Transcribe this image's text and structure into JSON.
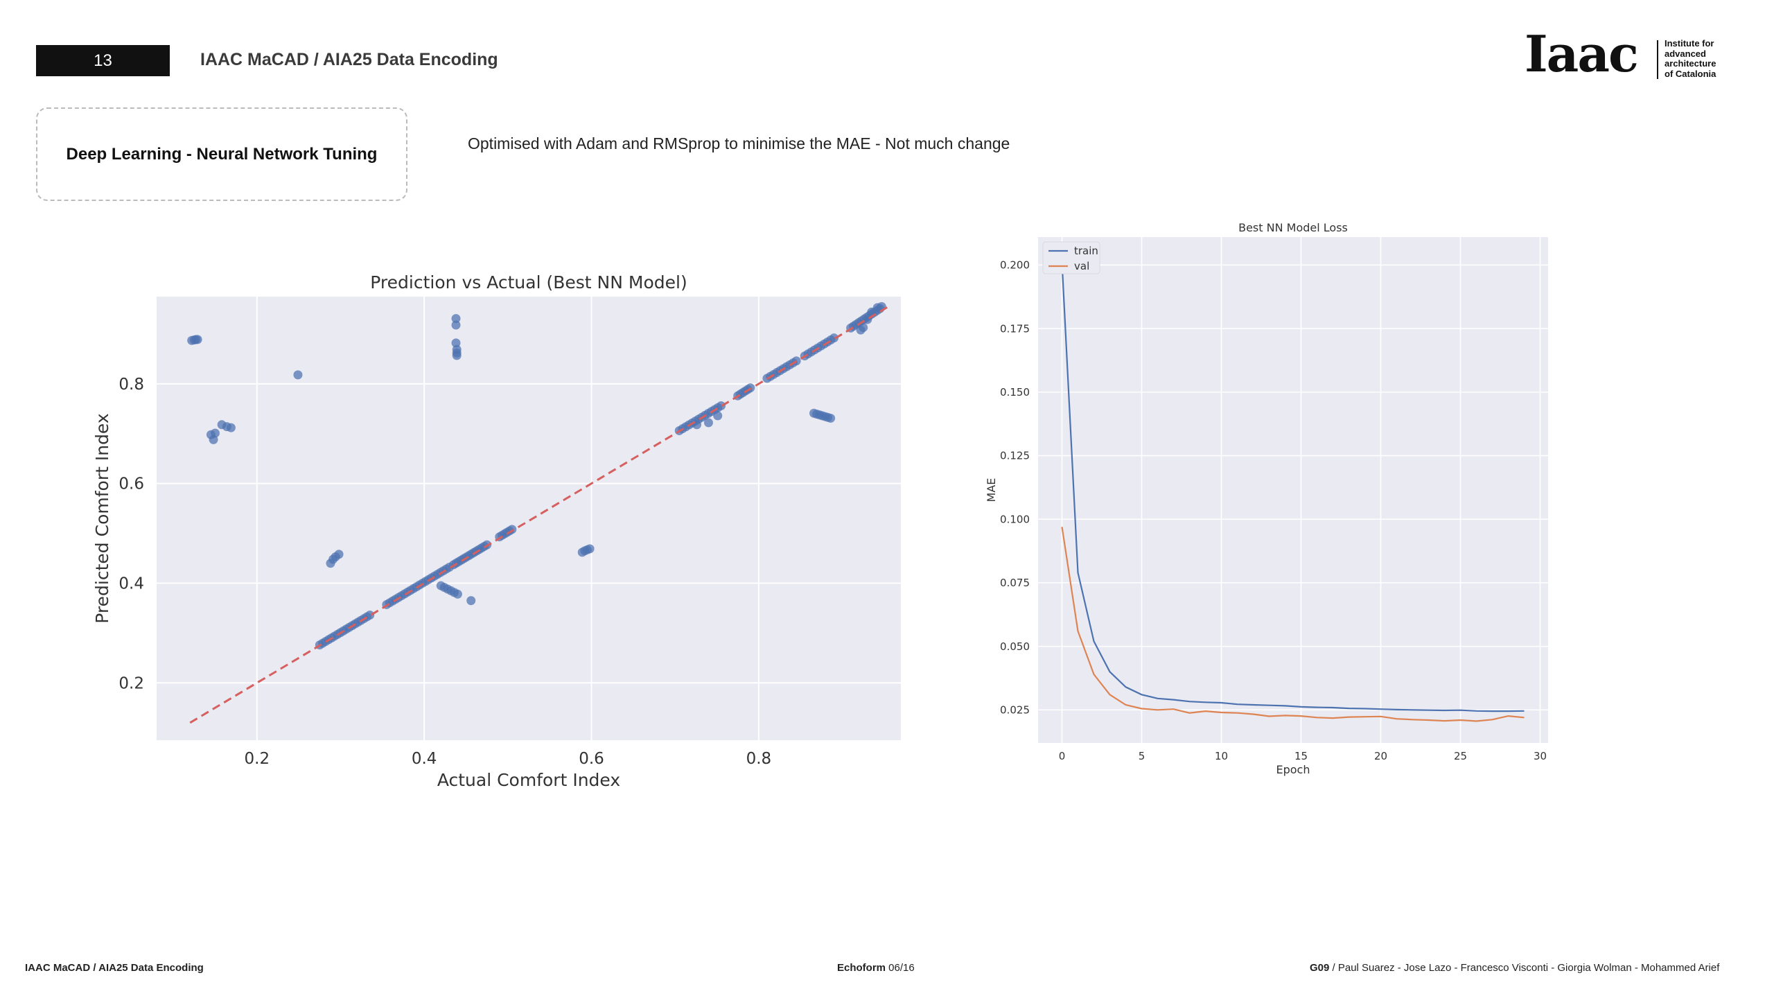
{
  "header": {
    "page_number": "13",
    "title": "IAAC MaCAD / AIA25 Data Encoding"
  },
  "logo": {
    "wordmark": "Iaac",
    "caption": [
      "Institute for",
      "advanced",
      "architecture",
      "of Catalonia"
    ]
  },
  "section": {
    "title": "Deep Learning - Neural Network Tuning"
  },
  "subtitle": "Optimised with Adam and RMSprop to minimise the MAE - Not much change",
  "footer": {
    "left": "IAAC MaCAD / AIA25 Data Encoding",
    "center_bold": "Echoform",
    "center_rest": " 06/16",
    "right_bold": "G09",
    "right_rest": " / Paul Suarez - Jose Lazo - Francesco Visconti - Giorgia Wolman - Mohammed Arief"
  },
  "colors": {
    "plot_bg": "#eaeaf2",
    "grid": "#ffffff",
    "scatter_point": "#4c72b0",
    "reference_line": "#d65f5f",
    "train": "#4c72b0",
    "val": "#dd8452"
  },
  "chart_data": [
    {
      "type": "scatter",
      "title": "Prediction vs Actual (Best NN Model)",
      "xlabel": "Actual Comfort Index",
      "ylabel": "Predicted Comfort Index",
      "xlim": [
        0.08,
        0.97
      ],
      "ylim": [
        0.085,
        0.975
      ],
      "xticks": [
        0.2,
        0.4,
        0.6,
        0.8
      ],
      "yticks": [
        0.2,
        0.4,
        0.6,
        0.8
      ],
      "xtick_labels": [
        "0.2",
        "0.4",
        "0.6",
        "0.8"
      ],
      "ytick_labels": [
        "0.2",
        "0.4",
        "0.6",
        "0.8"
      ],
      "grid": true,
      "reference_line": {
        "style": "dashed",
        "from": [
          0.12,
          0.12
        ],
        "to": [
          0.955,
          0.955
        ]
      },
      "point_segments": [
        {
          "from": [
            0.275,
            0.276
          ],
          "to": [
            0.335,
            0.336
          ],
          "n": 18
        },
        {
          "from": [
            0.355,
            0.357
          ],
          "to": [
            0.43,
            0.432
          ],
          "n": 22
        },
        {
          "from": [
            0.435,
            0.437
          ],
          "to": [
            0.475,
            0.477
          ],
          "n": 14
        },
        {
          "from": [
            0.49,
            0.493
          ],
          "to": [
            0.505,
            0.508
          ],
          "n": 6
        },
        {
          "from": [
            0.705,
            0.706
          ],
          "to": [
            0.755,
            0.756
          ],
          "n": 14
        },
        {
          "from": [
            0.775,
            0.776
          ],
          "to": [
            0.79,
            0.792
          ],
          "n": 6
        },
        {
          "from": [
            0.81,
            0.811
          ],
          "to": [
            0.845,
            0.846
          ],
          "n": 10
        },
        {
          "from": [
            0.855,
            0.856
          ],
          "to": [
            0.89,
            0.892
          ],
          "n": 10
        },
        {
          "from": [
            0.91,
            0.912
          ],
          "to": [
            0.945,
            0.951
          ],
          "n": 12
        },
        {
          "from": [
            0.42,
            0.395
          ],
          "to": [
            0.44,
            0.378
          ],
          "n": 6
        },
        {
          "from": [
            0.866,
            0.741
          ],
          "to": [
            0.886,
            0.731
          ],
          "n": 7
        }
      ],
      "points": [
        [
          0.122,
          0.887
        ],
        [
          0.125,
          0.888
        ],
        [
          0.127,
          0.889
        ],
        [
          0.129,
          0.889
        ],
        [
          0.145,
          0.698
        ],
        [
          0.148,
          0.688
        ],
        [
          0.15,
          0.701
        ],
        [
          0.158,
          0.718
        ],
        [
          0.164,
          0.714
        ],
        [
          0.169,
          0.712
        ],
        [
          0.249,
          0.818
        ],
        [
          0.288,
          0.44
        ],
        [
          0.291,
          0.448
        ],
        [
          0.294,
          0.453
        ],
        [
          0.298,
          0.458
        ],
        [
          0.438,
          0.931
        ],
        [
          0.438,
          0.918
        ],
        [
          0.438,
          0.882
        ],
        [
          0.439,
          0.869
        ],
        [
          0.439,
          0.862
        ],
        [
          0.439,
          0.857
        ],
        [
          0.456,
          0.365
        ],
        [
          0.589,
          0.462
        ],
        [
          0.592,
          0.465
        ],
        [
          0.595,
          0.467
        ],
        [
          0.598,
          0.469
        ],
        [
          0.726,
          0.718
        ],
        [
          0.74,
          0.722
        ],
        [
          0.751,
          0.736
        ],
        [
          0.922,
          0.908
        ],
        [
          0.925,
          0.913
        ],
        [
          0.93,
          0.929
        ],
        [
          0.935,
          0.944
        ],
        [
          0.942,
          0.953
        ],
        [
          0.947,
          0.955
        ]
      ]
    },
    {
      "type": "line",
      "title": "Best NN Model Loss",
      "xlabel": "Epoch",
      "ylabel": "MAE",
      "xlim": [
        -1.5,
        30.5
      ],
      "ylim": [
        0.012,
        0.211
      ],
      "xticks": [
        0,
        5,
        10,
        15,
        20,
        25,
        30
      ],
      "yticks": [
        0.025,
        0.05,
        0.075,
        0.1,
        0.125,
        0.15,
        0.175,
        0.2
      ],
      "xtick_labels": [
        "0",
        "5",
        "10",
        "15",
        "20",
        "25",
        "30"
      ],
      "ytick_labels": [
        "0.025",
        "0.050",
        "0.075",
        "0.100",
        "0.125",
        "0.150",
        "0.175",
        "0.200"
      ],
      "grid": true,
      "legend": {
        "position": "top-left"
      },
      "x": [
        0,
        1,
        2,
        3,
        4,
        5,
        6,
        7,
        8,
        9,
        10,
        11,
        12,
        13,
        14,
        15,
        16,
        17,
        18,
        19,
        20,
        21,
        22,
        23,
        24,
        25,
        26,
        27,
        28,
        29
      ],
      "series": [
        {
          "name": "train",
          "values": [
            0.201,
            0.079,
            0.052,
            0.04,
            0.034,
            0.031,
            0.0295,
            0.029,
            0.0283,
            0.028,
            0.0278,
            0.0272,
            0.027,
            0.0268,
            0.0266,
            0.0262,
            0.026,
            0.0259,
            0.0256,
            0.0255,
            0.0253,
            0.0251,
            0.025,
            0.0249,
            0.0248,
            0.0249,
            0.0246,
            0.0245,
            0.0245,
            0.0246
          ]
        },
        {
          "name": "val",
          "values": [
            0.097,
            0.056,
            0.039,
            0.031,
            0.027,
            0.0255,
            0.025,
            0.0253,
            0.0238,
            0.0245,
            0.024,
            0.0238,
            0.0233,
            0.0225,
            0.0228,
            0.0226,
            0.022,
            0.0218,
            0.0222,
            0.0223,
            0.0224,
            0.0215,
            0.0212,
            0.021,
            0.0207,
            0.021,
            0.0206,
            0.0212,
            0.0226,
            0.022
          ]
        }
      ]
    }
  ]
}
